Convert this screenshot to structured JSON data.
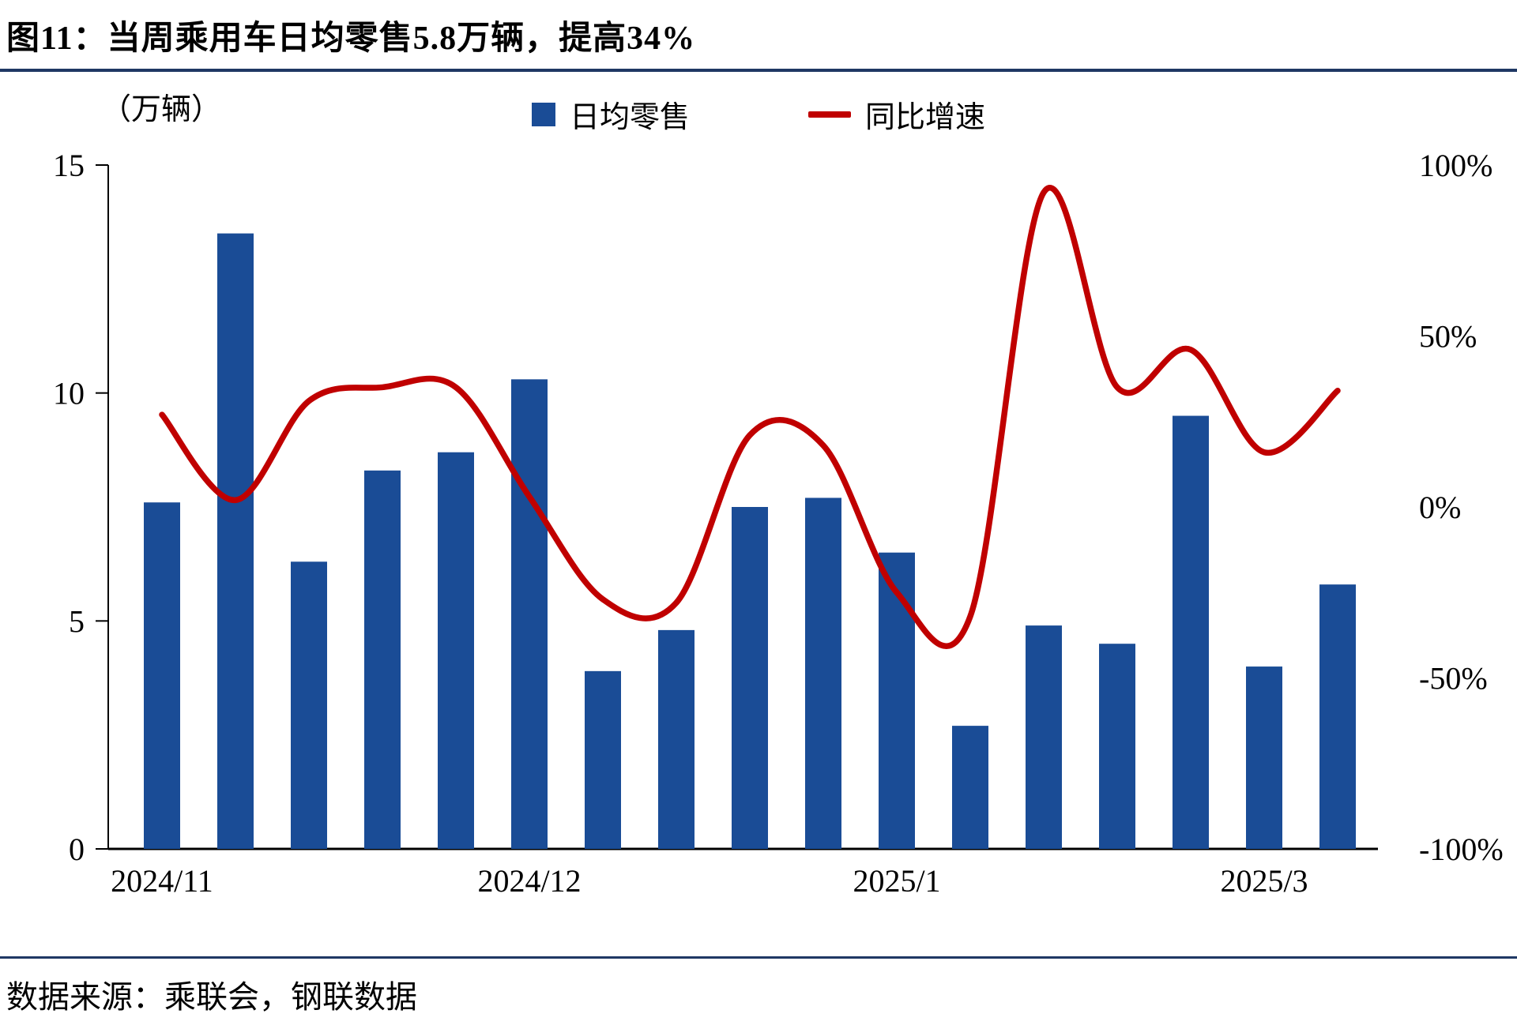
{
  "source": "数据来源：乘联会，钢联数据",
  "chart_data": {
    "type": "bar+line",
    "title": "图11：当周乘用车日均零售5.8万辆，提高34%",
    "unit_label": "（万辆）",
    "legend": [
      {
        "label": "日均零售",
        "type": "bar",
        "color": "#1A4C96"
      },
      {
        "label": "同比增速",
        "type": "line",
        "color": "#C00000"
      }
    ],
    "x_ticks": [
      {
        "index": 0,
        "label": "2024/11"
      },
      {
        "index": 5,
        "label": "2024/12"
      },
      {
        "index": 10,
        "label": "2025/1"
      },
      {
        "index": 15,
        "label": "2025/3"
      }
    ],
    "bars": {
      "name": "日均零售",
      "unit": "万辆",
      "values": [
        7.6,
        13.5,
        6.3,
        8.3,
        8.7,
        10.3,
        3.9,
        4.8,
        7.5,
        7.7,
        6.5,
        2.7,
        4.9,
        4.5,
        9.5,
        4.0,
        5.8
      ]
    },
    "line": {
      "name": "同比增速",
      "unit": "%",
      "values": [
        27,
        2,
        31,
        35,
        35,
        3,
        -27,
        -28,
        21,
        18,
        -25,
        -32,
        92,
        35,
        46,
        16,
        34
      ]
    },
    "left_axis": {
      "max": 15,
      "min": 0,
      "ticks": [
        15,
        10,
        5,
        0
      ]
    },
    "right_axis": {
      "max": 100,
      "min": -100,
      "ticks": [
        100,
        50,
        0,
        -50,
        -100
      ]
    },
    "grid": "off",
    "legend_position": "top-center"
  }
}
